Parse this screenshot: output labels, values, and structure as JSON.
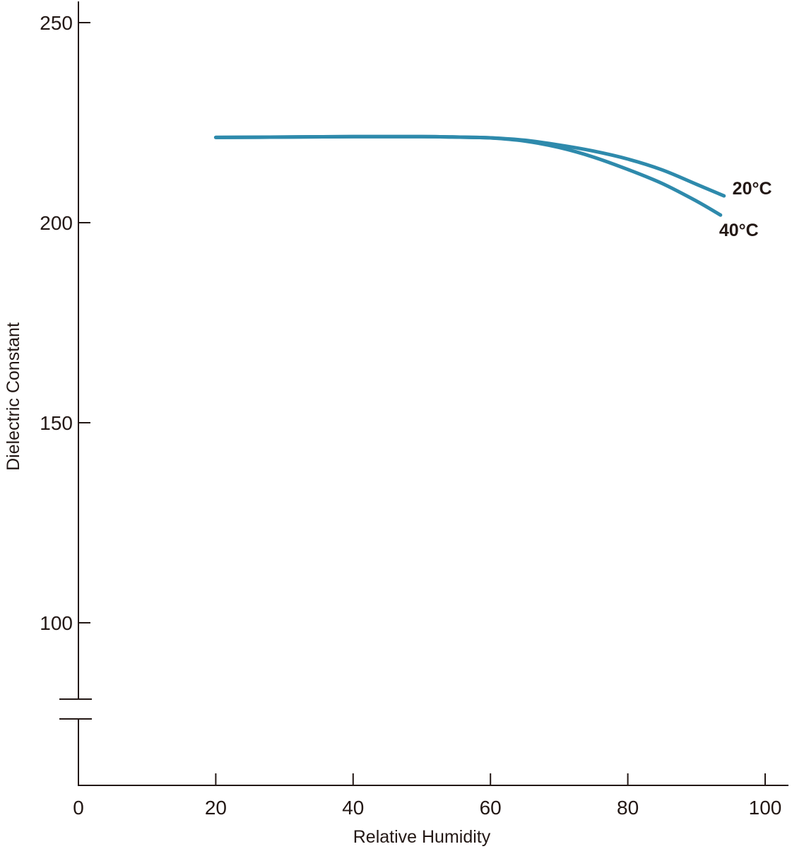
{
  "chart_data": {
    "type": "line",
    "title": "",
    "xlabel": "Relative Humidity",
    "ylabel": "Dielectric Constant",
    "xlim": [
      0,
      100
    ],
    "ylim": [
      80,
      250
    ],
    "y_axis_break": true,
    "grid": false,
    "line_color": "#2e8aac",
    "axis_color": "#231815",
    "x_ticks": [
      {
        "value": 0,
        "label": "0"
      },
      {
        "value": 20,
        "label": "20"
      },
      {
        "value": 40,
        "label": "40"
      },
      {
        "value": 60,
        "label": "60"
      },
      {
        "value": 80,
        "label": "80"
      },
      {
        "value": 100,
        "label": "100"
      }
    ],
    "y_ticks": [
      {
        "value": 100,
        "label": "100"
      },
      {
        "value": 150,
        "label": "150"
      },
      {
        "value": 200,
        "label": "200"
      },
      {
        "value": 250,
        "label": "250"
      }
    ],
    "series": [
      {
        "name": "20°C",
        "points": [
          [
            20,
            221.3
          ],
          [
            30,
            221.4
          ],
          [
            40,
            221.5
          ],
          [
            50,
            221.5
          ],
          [
            55,
            221.4
          ],
          [
            60,
            221.2
          ],
          [
            65,
            220.6
          ],
          [
            70,
            219.4
          ],
          [
            75,
            217.9
          ],
          [
            80,
            215.9
          ],
          [
            85,
            213.2
          ],
          [
            90,
            209.6
          ],
          [
            94,
            206.7
          ]
        ]
      },
      {
        "name": "40°C",
        "points": [
          [
            20,
            221.3
          ],
          [
            30,
            221.4
          ],
          [
            40,
            221.5
          ],
          [
            50,
            221.5
          ],
          [
            55,
            221.4
          ],
          [
            60,
            221.2
          ],
          [
            65,
            220.4
          ],
          [
            70,
            218.8
          ],
          [
            75,
            216.4
          ],
          [
            80,
            213.3
          ],
          [
            85,
            209.8
          ],
          [
            90,
            205.4
          ],
          [
            93.5,
            201.9
          ]
        ]
      }
    ]
  }
}
